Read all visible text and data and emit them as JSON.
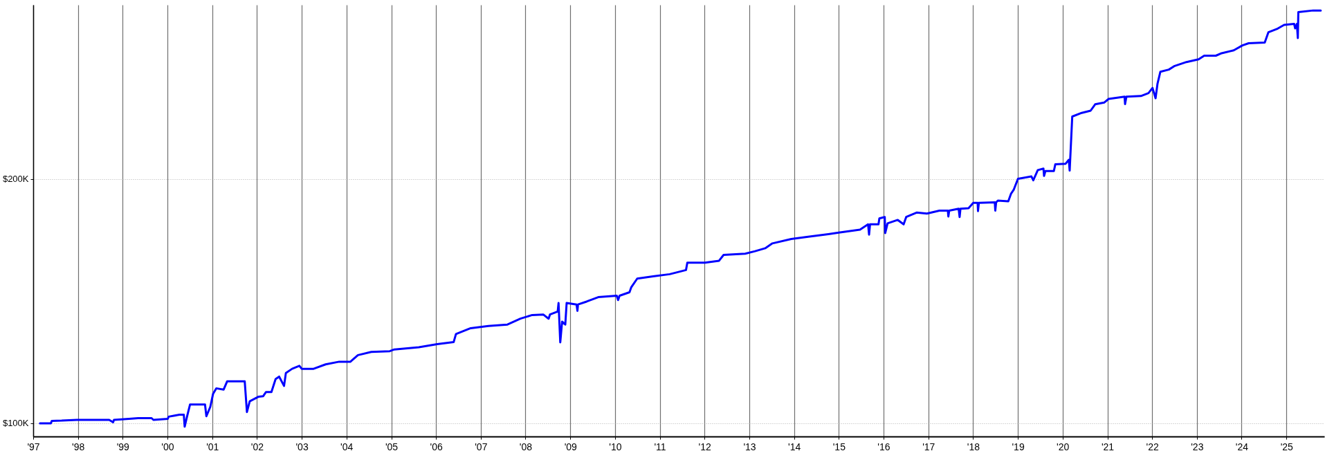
{
  "chart_data": {
    "type": "line",
    "x": [
      "1997-02-25",
      "1997-05-25",
      "1997-06-02",
      "1997-08-21",
      "1997-12-23",
      "1998-09-13",
      "1998-10-15",
      "1998-10-22",
      "1999-02-21",
      "1999-05-07",
      "1999-08-25",
      "1999-09-09",
      "2000-01-04",
      "2000-01-11",
      "2000-04-08",
      "2000-05-14",
      "2000-05-21",
      "2000-06-09",
      "2000-07-04",
      "2000-11-03",
      "2000-11-14",
      "2000-12-16",
      "2001-01-08",
      "2001-02-03",
      "2001-04-04",
      "2001-05-03",
      "2001-09-23",
      "2001-10-11",
      "2001-11-03",
      "2002-01-15",
      "2002-02-21",
      "2002-03-16",
      "2002-04-29",
      "2002-06-02",
      "2002-07-01",
      "2002-08-10",
      "2002-08-25",
      "2002-10-15",
      "2002-12-13",
      "2003-01-01",
      "2003-04-08",
      "2003-07-15",
      "2003-11-03",
      "2004-02-03",
      "2004-04-04",
      "2004-07-22",
      "2004-12-20",
      "2005-01-26",
      "2005-08-14",
      "2006-01-11",
      "2006-05-25",
      "2006-06-13",
      "2006-10-11",
      "2007-03-05",
      "2007-08-07",
      "2007-11-21",
      "2008-02-25",
      "2008-05-25",
      "2008-07-08",
      "2008-07-19",
      "2008-09-20",
      "2008-09-27",
      "2008-10-11",
      "2008-10-26",
      "2008-11-21",
      "2008-12-02",
      "2009-02-21",
      "2009-02-28",
      "2009-03-05",
      "2009-05-14",
      "2009-08-17",
      "2010-01-15",
      "2010-01-26",
      "2010-02-07",
      "2010-04-29",
      "2010-05-14",
      "2010-07-01",
      "2010-11-07",
      "2011-03-23",
      "2011-08-03",
      "2011-08-14",
      "2012-01-04",
      "2012-04-29",
      "2012-06-05",
      "2012-11-28",
      "2013-02-17",
      "2013-05-10",
      "2013-07-08",
      "2013-12-09",
      "2014-04-26",
      "2014-10-08",
      "2015-01-01",
      "2015-06-23",
      "2015-08-28",
      "2015-09-05",
      "2015-09-13",
      "2015-11-21",
      "2015-11-28",
      "2016-01-11",
      "2016-01-15",
      "2016-02-03",
      "2016-04-26",
      "2016-06-13",
      "2016-07-04",
      "2016-09-27",
      "2016-12-20",
      "2017-04-01",
      "2017-06-09",
      "2017-06-13",
      "2017-06-20",
      "2017-09-05",
      "2017-09-13",
      "2017-09-20",
      "2017-11-25",
      "2018-01-02",
      "2018-02-07",
      "2018-02-10",
      "2018-02-17",
      "2018-06-27",
      "2018-07-01",
      "2018-07-08",
      "2018-07-22",
      "2018-10-15",
      "2018-11-07",
      "2018-11-28",
      "2019-01-02",
      "2019-04-22",
      "2019-05-07",
      "2019-06-13",
      "2019-07-29",
      "2019-08-03",
      "2019-08-14",
      "2019-10-22",
      "2019-11-03",
      "2020-01-26",
      "2020-02-21",
      "2020-02-28",
      "2020-03-20",
      "2020-06-05",
      "2020-08-17",
      "2020-09-23",
      "2020-12-05",
      "2021-01-11",
      "2021-05-21",
      "2021-05-25",
      "2021-06-05",
      "2021-10-01",
      "2021-12-02",
      "2022-01-04",
      "2022-01-29",
      "2022-02-14",
      "2022-03-09",
      "2022-05-17",
      "2022-07-04",
      "2022-10-08",
      "2023-01-15",
      "2023-03-02",
      "2023-06-05",
      "2023-07-22",
      "2023-10-29",
      "2024-01-08",
      "2024-02-28",
      "2024-07-08",
      "2024-08-07",
      "2024-10-22",
      "2024-12-13",
      "2025-03-05",
      "2025-03-13",
      "2025-03-27",
      "2025-04-04",
      "2025-04-08",
      "2025-08-07",
      "2025-10-08"
    ],
    "series": [
      {
        "color": "#0000ff",
        "values": [
          100,
          100,
          101,
          101.1,
          101.4,
          101.4,
          100.4,
          101.4,
          101.8,
          102.1,
          102.1,
          101.4,
          101.8,
          102.7,
          103.5,
          103.5,
          98.6,
          102.7,
          107.7,
          107.7,
          102.9,
          106.7,
          112.1,
          114.3,
          113.8,
          117.2,
          117.2,
          104.6,
          109,
          110.9,
          111.1,
          112.8,
          112.8,
          118.1,
          119.1,
          115.3,
          120.6,
          122.3,
          123.5,
          122.3,
          122.3,
          124.1,
          125.2,
          125.2,
          127.9,
          129.2,
          129.5,
          130.2,
          131.1,
          132.4,
          133.2,
          136.5,
          138.9,
          139.8,
          140.4,
          142.8,
          144.3,
          144.5,
          142.8,
          144.5,
          145.7,
          149.2,
          133.1,
          141.6,
          140.4,
          149.2,
          148.6,
          146,
          148.6,
          149.8,
          151.6,
          152.2,
          150.4,
          152.2,
          153.6,
          155.7,
          159.2,
          160.1,
          161,
          162.7,
          165.7,
          165.7,
          166.5,
          168.9,
          169.4,
          170.4,
          171.6,
          173.6,
          175.4,
          176.3,
          177.4,
          178,
          179.2,
          181.4,
          177.2,
          181.4,
          181.4,
          183.8,
          184.4,
          177.8,
          181.8,
          183.2,
          181.4,
          184.4,
          186.2,
          185.8,
          187,
          187,
          184.6,
          187,
          187.8,
          184.4,
          187.8,
          188,
          190.2,
          190.2,
          186.8,
          190.2,
          190.4,
          187,
          190.4,
          191.1,
          190.8,
          194,
          195.5,
          200,
          201,
          199.4,
          203.6,
          204.2,
          201.2,
          203.2,
          203.2,
          206,
          206.2,
          207.8,
          203.4,
          225.5,
          227,
          227.9,
          230.5,
          231.2,
          232.7,
          233.6,
          230.6,
          233.6,
          233.9,
          235.1,
          237.2,
          233,
          239,
          243.8,
          244.7,
          246.2,
          247.8,
          248.9,
          250.4,
          250.4,
          251.4,
          252.6,
          254.6,
          255.5,
          255.8,
          260,
          261.5,
          263,
          263.4,
          261.6,
          263.4,
          257.6,
          268.2,
          268.9,
          268.9
        ]
      }
    ],
    "xlim": [
      "1997-01-01",
      "2025-11-06"
    ],
    "xticks": [
      {
        "value": "1997-01-01",
        "label": "'97"
      },
      {
        "value": "1998-01-01",
        "label": "'98"
      },
      {
        "value": "1999-01-01",
        "label": "'99"
      },
      {
        "value": "2000-01-01",
        "label": "'00"
      },
      {
        "value": "2001-01-01",
        "label": "'01"
      },
      {
        "value": "2002-01-01",
        "label": "'02"
      },
      {
        "value": "2003-01-01",
        "label": "'03"
      },
      {
        "value": "2004-01-01",
        "label": "'04"
      },
      {
        "value": "2005-01-01",
        "label": "'05"
      },
      {
        "value": "2006-01-01",
        "label": "'06"
      },
      {
        "value": "2007-01-01",
        "label": "'07"
      },
      {
        "value": "2008-01-01",
        "label": "'08"
      },
      {
        "value": "2009-01-01",
        "label": "'09"
      },
      {
        "value": "2010-01-01",
        "label": "'10"
      },
      {
        "value": "2011-01-01",
        "label": "'11"
      },
      {
        "value": "2012-01-01",
        "label": "'12"
      },
      {
        "value": "2013-01-01",
        "label": "'13"
      },
      {
        "value": "2014-01-01",
        "label": "'14"
      },
      {
        "value": "2015-01-01",
        "label": "'15"
      },
      {
        "value": "2016-01-01",
        "label": "'16"
      },
      {
        "value": "2017-01-01",
        "label": "'17"
      },
      {
        "value": "2018-01-01",
        "label": "'18"
      },
      {
        "value": "2019-01-01",
        "label": "'19"
      },
      {
        "value": "2020-01-01",
        "label": "'20"
      },
      {
        "value": "2021-01-01",
        "label": "'21"
      },
      {
        "value": "2022-01-01",
        "label": "'22"
      },
      {
        "value": "2023-01-01",
        "label": "'23"
      },
      {
        "value": "2024-01-01",
        "label": "'24"
      },
      {
        "value": "2025-01-01",
        "label": "'25"
      }
    ],
    "ylim": [
      94.6,
      271.2
    ],
    "yticks": [
      {
        "value": 100,
        "label": "$100K"
      },
      {
        "value": 200,
        "label": "$200K"
      }
    ],
    "grid": true
  }
}
